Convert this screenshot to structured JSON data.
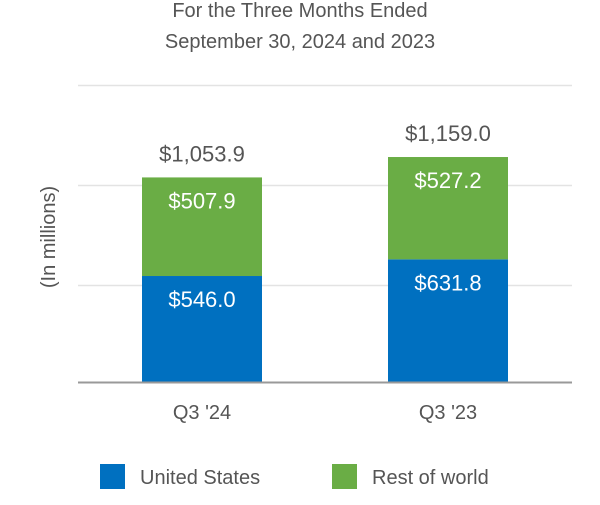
{
  "chart_data": {
    "type": "bar",
    "stacked": true,
    "title": "For the Three Months Ended",
    "subtitle": "September 30, 2024 and 2023",
    "ylabel": "(In millions)",
    "xlabel": "",
    "categories": [
      "Q3 '24",
      "Q3 '23"
    ],
    "series": [
      {
        "name": "United States",
        "values": [
          546.0,
          631.8
        ],
        "labels": [
          "$546.0",
          "$631.8"
        ],
        "color": "#0070c0"
      },
      {
        "name": "Rest of world",
        "values": [
          507.9,
          527.2
        ],
        "labels": [
          "$507.9",
          "$527.2"
        ],
        "color": "#6aad45"
      }
    ],
    "totals": [
      1053.9,
      1159.0
    ],
    "total_labels": [
      "$1,053.9",
      "$1,159.0"
    ],
    "ylim": [
      0,
      1530
    ],
    "grid": true,
    "legend": "bottom"
  }
}
